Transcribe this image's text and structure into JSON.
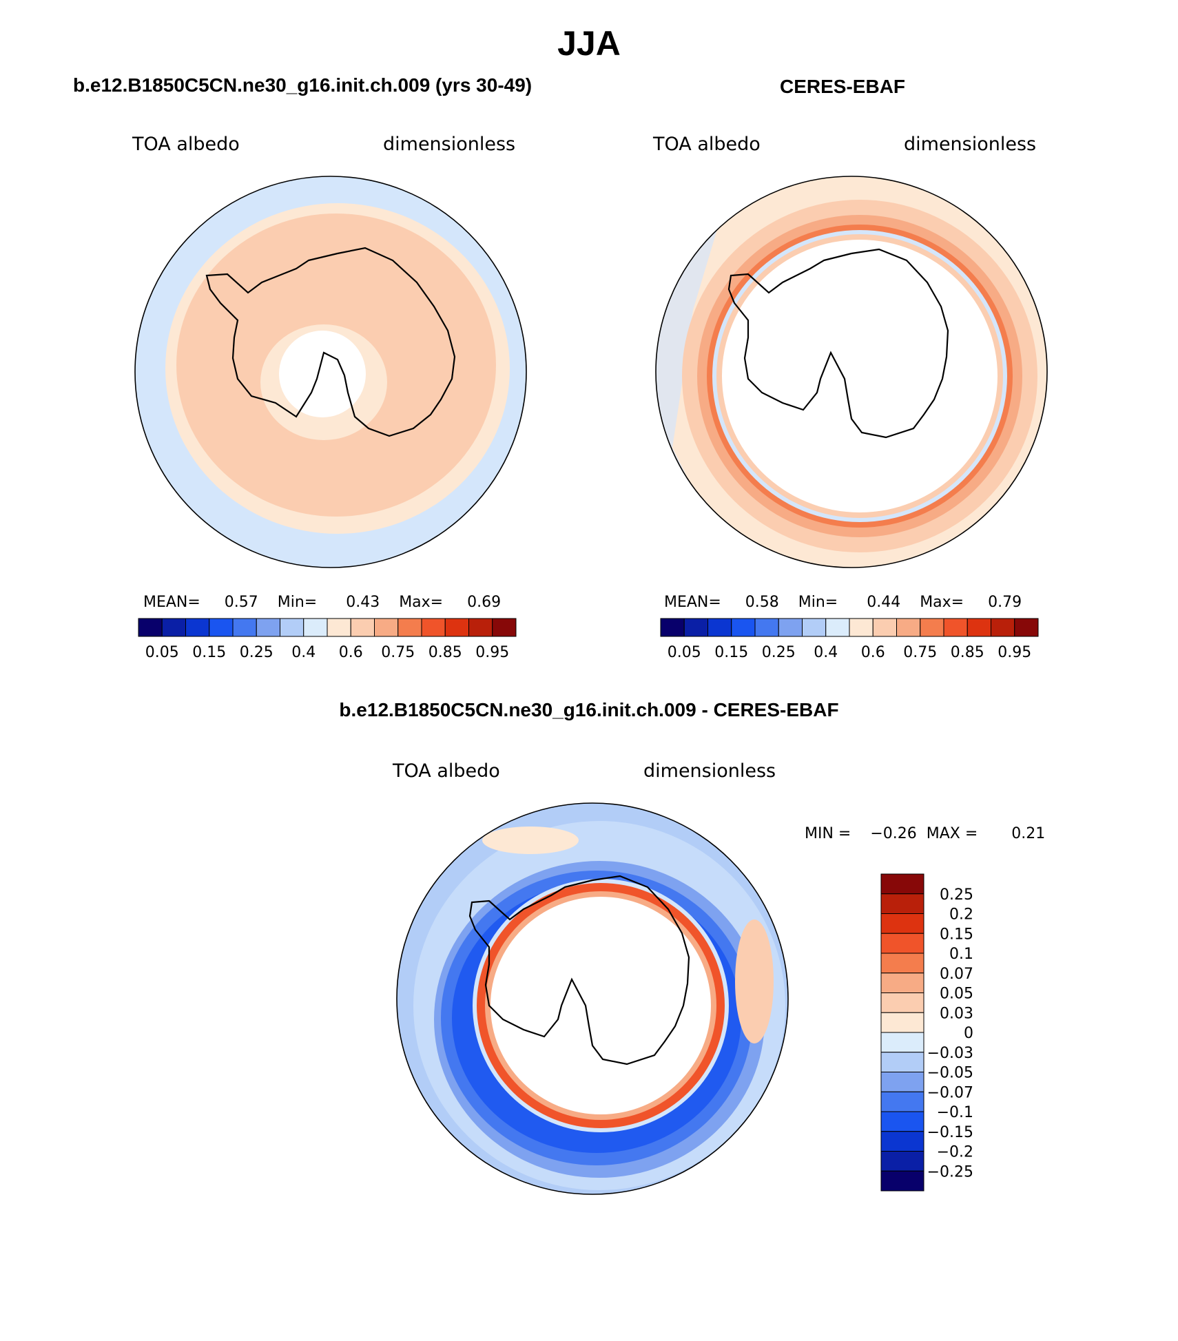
{
  "title": "JJA",
  "panels": [
    {
      "id": "model",
      "title": "b.e12.B1850C5CN.ne30_g16.init.ch.009 (yrs 30-49)",
      "left_label": "TOA albedo",
      "right_label": "dimensionless",
      "stats": {
        "mean_label": "MEAN=",
        "mean": "0.57",
        "min_label": "Min=",
        "min": "0.43",
        "max_label": "Max=",
        "max": "0.69"
      }
    },
    {
      "id": "obs",
      "title": "CERES-EBAF",
      "left_label": "TOA albedo",
      "right_label": "dimensionless",
      "stats": {
        "mean_label": "MEAN=",
        "mean": "0.58",
        "min_label": "Min=",
        "min": "0.44",
        "max_label": "Max=",
        "max": "0.79"
      }
    },
    {
      "id": "diff",
      "title": "b.e12.B1850C5CN.ne30_g16.init.ch.009 - CERES-EBAF",
      "left_label": "TOA albedo",
      "right_label": "dimensionless",
      "stats": {
        "min_label": "MIN =",
        "min": "−0.26",
        "max_label": "MAX =",
        "max": "0.21"
      }
    }
  ],
  "colorbars": {
    "field": {
      "colors": [
        "#08006b",
        "#0a1fa6",
        "#0b36d1",
        "#1a55f0",
        "#4478f0",
        "#7ea2f0",
        "#b2cdf7",
        "#dbecfb",
        "#fde8d4",
        "#fbcdb0",
        "#f7ab85",
        "#f47d4d",
        "#f0542a",
        "#dd3310",
        "#b9200a",
        "#870808"
      ],
      "tick_labels": [
        "0.05",
        "0.15",
        "0.25",
        "0.4",
        "0.6",
        "0.75",
        "0.85",
        "0.95"
      ]
    },
    "diff": {
      "colors": [
        "#870808",
        "#b9200a",
        "#dd3310",
        "#f0542a",
        "#f47d4d",
        "#f7ab85",
        "#fbcdb0",
        "#fde8d4",
        "#dbecfb",
        "#b2cdf7",
        "#7ea2f0",
        "#4478f0",
        "#1a55f0",
        "#0b36d1",
        "#0a1fa6",
        "#08006b"
      ],
      "tick_labels": [
        "0.25",
        "0.2",
        "0.15",
        "0.1",
        "0.07",
        "0.05",
        "0.03",
        "0",
        "−0.03",
        "−0.05",
        "−0.07",
        "−0.1",
        "−0.15",
        "−0.2",
        "−0.25"
      ]
    }
  },
  "map_colors": {
    "ocean_low": "#d4e6fb",
    "mid": "#fde8d4",
    "high": "#fbcdb0",
    "higher": "#f7ab85",
    "strong": "#f47d4d",
    "red": "#f0542a",
    "blue_light": "#b2cdf7",
    "blue_mid": "#7ea2f0",
    "blue": "#4478f0",
    "blue_dark": "#1a55f0"
  }
}
